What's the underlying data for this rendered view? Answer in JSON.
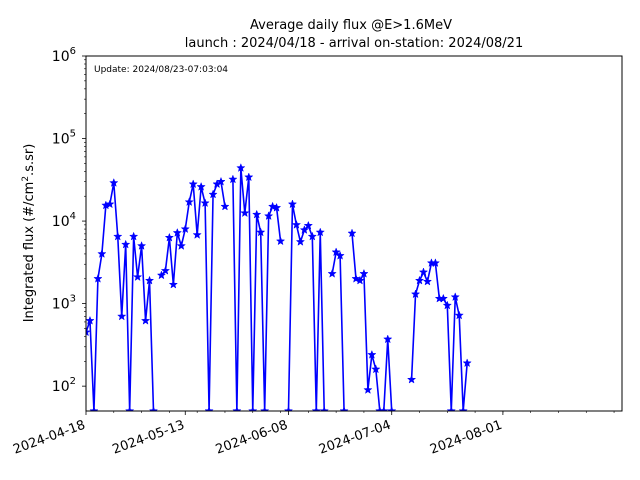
{
  "chart_data": {
    "type": "line",
    "title": "Average daily flux @E>1.6MeV",
    "subtitle": "launch : 2024/04/18 - arrival on-station: 2024/08/21",
    "annotation": "Update: 2024/08/23-07:03:04",
    "xlabel": "",
    "ylabel_prefix": "Integrated flux (#/cm",
    "ylabel_sup": "2",
    "ylabel_suffix": ".s.sr)",
    "yscale": "log",
    "ylim": [
      50,
      1000000
    ],
    "xlim": [
      "2024-04-18",
      "2024-08-31"
    ],
    "grid": false,
    "series_color": "#0000ff",
    "marker": "star",
    "x_ticks": [
      "2024-04-18",
      "2024-05-13",
      "2024-06-08",
      "2024-07-04",
      "2024-08-01"
    ],
    "y_ticks": [
      {
        "value": 100,
        "base": "10",
        "exp": "2"
      },
      {
        "value": 1000,
        "base": "10",
        "exp": "3"
      },
      {
        "value": 10000,
        "base": "10",
        "exp": "4"
      },
      {
        "value": 100000,
        "base": "10",
        "exp": "5"
      },
      {
        "value": 1000000,
        "base": "10",
        "exp": "6"
      }
    ],
    "series": [
      {
        "points": [
          [
            "2024-04-18",
            450
          ],
          [
            "2024-04-19",
            620
          ],
          [
            "2024-04-20",
            50
          ],
          [
            "2024-04-21",
            2000
          ],
          [
            "2024-04-22",
            4000
          ],
          [
            "2024-04-23",
            15500
          ],
          [
            "2024-04-24",
            16000
          ],
          [
            "2024-04-25",
            29000
          ],
          [
            "2024-04-26",
            6500
          ],
          [
            "2024-04-27",
            700
          ],
          [
            "2024-04-28",
            5200
          ],
          [
            "2024-04-29",
            50
          ],
          [
            "2024-04-30",
            6500
          ],
          [
            "2024-05-01",
            2100
          ],
          [
            "2024-05-02",
            5000
          ],
          [
            "2024-05-03",
            620
          ],
          [
            "2024-05-04",
            1900
          ],
          [
            "2024-05-05",
            50
          ],
          [
            "2024-05-06",
            null
          ],
          [
            "2024-05-07",
            2200
          ],
          [
            "2024-05-08",
            2500
          ],
          [
            "2024-05-09",
            6300
          ],
          [
            "2024-05-10",
            1700
          ],
          [
            "2024-05-11",
            7200
          ],
          [
            "2024-05-12",
            5000
          ],
          [
            "2024-05-13",
            8000
          ],
          [
            "2024-05-14",
            17000
          ],
          [
            "2024-05-15",
            28000
          ],
          [
            "2024-05-16",
            6800
          ],
          [
            "2024-05-17",
            26000
          ],
          [
            "2024-05-18",
            16500
          ],
          [
            "2024-05-19",
            50
          ],
          [
            "2024-05-20",
            21000
          ],
          [
            "2024-05-21",
            28000
          ],
          [
            "2024-05-22",
            30000
          ],
          [
            "2024-05-23",
            15000
          ],
          [
            "2024-05-24",
            null
          ],
          [
            "2024-05-25",
            32000
          ],
          [
            "2024-05-26",
            50
          ],
          [
            "2024-05-27",
            44000
          ],
          [
            "2024-05-28",
            12500
          ],
          [
            "2024-05-29",
            34000
          ],
          [
            "2024-05-30",
            50
          ],
          [
            "2024-05-31",
            12000
          ],
          [
            "2024-06-01",
            7300
          ],
          [
            "2024-06-02",
            50
          ],
          [
            "2024-06-03",
            11500
          ],
          [
            "2024-06-04",
            15000
          ],
          [
            "2024-06-05",
            14500
          ],
          [
            "2024-06-06",
            5700
          ],
          [
            "2024-06-07",
            null
          ],
          [
            "2024-06-08",
            50
          ],
          [
            "2024-06-09",
            16000
          ],
          [
            "2024-06-10",
            9000
          ],
          [
            "2024-06-11",
            5600
          ],
          [
            "2024-06-12",
            7800
          ],
          [
            "2024-06-13",
            8800
          ],
          [
            "2024-06-14",
            6500
          ],
          [
            "2024-06-15",
            50
          ],
          [
            "2024-06-16",
            7300
          ],
          [
            "2024-06-17",
            50
          ],
          [
            "2024-06-18",
            null
          ],
          [
            "2024-06-19",
            2300
          ],
          [
            "2024-06-20",
            4200
          ],
          [
            "2024-06-21",
            3800
          ],
          [
            "2024-06-22",
            50
          ],
          [
            "2024-06-23",
            null
          ],
          [
            "2024-06-24",
            7100
          ],
          [
            "2024-06-25",
            2000
          ],
          [
            "2024-06-26",
            1900
          ],
          [
            "2024-06-27",
            2300
          ],
          [
            "2024-06-28",
            90
          ],
          [
            "2024-06-29",
            240
          ],
          [
            "2024-06-30",
            160
          ],
          [
            "2024-07-01",
            50
          ],
          [
            "2024-07-02",
            50
          ],
          [
            "2024-07-03",
            370
          ],
          [
            "2024-07-04",
            50
          ],
          [
            "2024-07-05",
            null
          ],
          [
            "2024-07-06",
            null
          ],
          [
            "2024-07-07",
            null
          ],
          [
            "2024-07-08",
            null
          ],
          [
            "2024-07-09",
            120
          ],
          [
            "2024-07-10",
            1300
          ],
          [
            "2024-07-11",
            1900
          ],
          [
            "2024-07-12",
            2400
          ],
          [
            "2024-07-13",
            1850
          ],
          [
            "2024-07-14",
            3100
          ],
          [
            "2024-07-15",
            3100
          ],
          [
            "2024-07-16",
            1150
          ],
          [
            "2024-07-17",
            1150
          ],
          [
            "2024-07-18",
            950
          ],
          [
            "2024-07-19",
            50
          ],
          [
            "2024-07-20",
            1200
          ],
          [
            "2024-07-21",
            720
          ],
          [
            "2024-07-22",
            50
          ],
          [
            "2024-07-23",
            190
          ]
        ]
      }
    ]
  }
}
